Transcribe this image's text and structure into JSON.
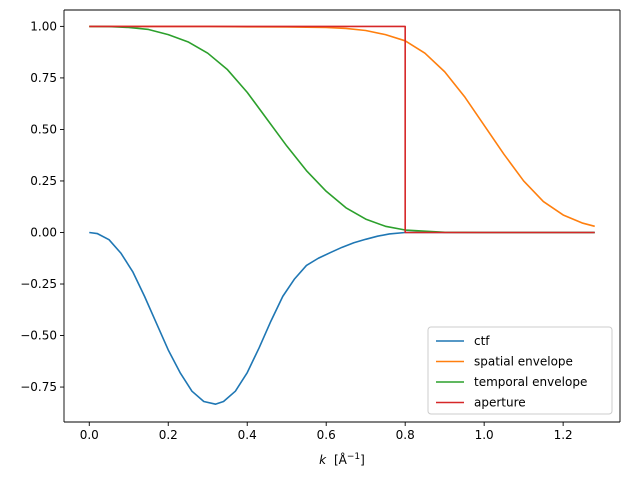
{
  "chart_data": {
    "type": "line",
    "xlabel_var": "k",
    "xlabel_unit": "[Å",
    "xlabel_exp": "−1",
    "xlabel_close": "]",
    "xlim": [
      -0.064,
      1.344
    ],
    "ylim": [
      -0.9195,
      1.0795
    ],
    "xticks": [
      {
        "v": 0.0,
        "label": "0.0"
      },
      {
        "v": 0.2,
        "label": "0.2"
      },
      {
        "v": 0.4,
        "label": "0.4"
      },
      {
        "v": 0.6,
        "label": "0.6"
      },
      {
        "v": 0.8,
        "label": "0.8"
      },
      {
        "v": 1.0,
        "label": "1.0"
      },
      {
        "v": 1.2,
        "label": "1.2"
      }
    ],
    "yticks": [
      {
        "v": -0.75,
        "label": "−0.75"
      },
      {
        "v": -0.5,
        "label": "−0.50"
      },
      {
        "v": -0.25,
        "label": "−0.25"
      },
      {
        "v": 0.0,
        "label": "0.00"
      },
      {
        "v": 0.25,
        "label": "0.25"
      },
      {
        "v": 0.5,
        "label": "0.50"
      },
      {
        "v": 0.75,
        "label": "0.75"
      },
      {
        "v": 1.0,
        "label": "1.00"
      }
    ],
    "legend_position": "lower-right",
    "series": [
      {
        "name": "ctf",
        "color": "#1f77b4",
        "x": [
          0.0,
          0.02,
          0.05,
          0.08,
          0.11,
          0.14,
          0.17,
          0.2,
          0.23,
          0.26,
          0.29,
          0.32,
          0.34,
          0.37,
          0.4,
          0.43,
          0.46,
          0.49,
          0.52,
          0.55,
          0.58,
          0.61,
          0.64,
          0.67,
          0.7,
          0.73,
          0.76,
          0.8,
          0.84,
          0.9,
          1.0,
          1.1,
          1.2,
          1.28
        ],
        "y": [
          0.0,
          -0.005,
          -0.035,
          -0.1,
          -0.19,
          -0.31,
          -0.44,
          -0.57,
          -0.68,
          -0.77,
          -0.82,
          -0.833,
          -0.82,
          -0.77,
          -0.68,
          -0.56,
          -0.43,
          -0.31,
          -0.225,
          -0.16,
          -0.125,
          -0.098,
          -0.072,
          -0.05,
          -0.033,
          -0.018,
          -0.007,
          0.0,
          0.0,
          0.0,
          0.0,
          0.0,
          0.0,
          0.0
        ]
      },
      {
        "name": "spatial envelope",
        "color": "#ff7f0e",
        "x": [
          0.0,
          0.1,
          0.2,
          0.3,
          0.4,
          0.5,
          0.6,
          0.65,
          0.7,
          0.75,
          0.8,
          0.85,
          0.9,
          0.95,
          1.0,
          1.05,
          1.1,
          1.15,
          1.2,
          1.25,
          1.28
        ],
        "y": [
          1.0,
          1.0,
          1.0,
          1.0,
          0.998,
          0.997,
          0.995,
          0.99,
          0.98,
          0.96,
          0.93,
          0.87,
          0.78,
          0.66,
          0.52,
          0.38,
          0.25,
          0.15,
          0.085,
          0.045,
          0.03
        ]
      },
      {
        "name": "temporal envelope",
        "color": "#2ca02c",
        "x": [
          0.0,
          0.05,
          0.1,
          0.15,
          0.2,
          0.25,
          0.3,
          0.35,
          0.4,
          0.45,
          0.5,
          0.55,
          0.6,
          0.65,
          0.7,
          0.75,
          0.8,
          0.9,
          1.0,
          1.1,
          1.2,
          1.28
        ],
        "y": [
          1.0,
          0.999,
          0.995,
          0.985,
          0.96,
          0.925,
          0.87,
          0.79,
          0.68,
          0.55,
          0.42,
          0.3,
          0.2,
          0.12,
          0.065,
          0.03,
          0.012,
          0.001,
          0.0,
          0.0,
          0.0,
          0.0
        ]
      },
      {
        "name": "aperture",
        "color": "#d62728",
        "x": [
          0.0,
          0.8,
          0.8,
          1.28
        ],
        "y": [
          1.0,
          1.0,
          0.0,
          0.0
        ]
      }
    ]
  }
}
